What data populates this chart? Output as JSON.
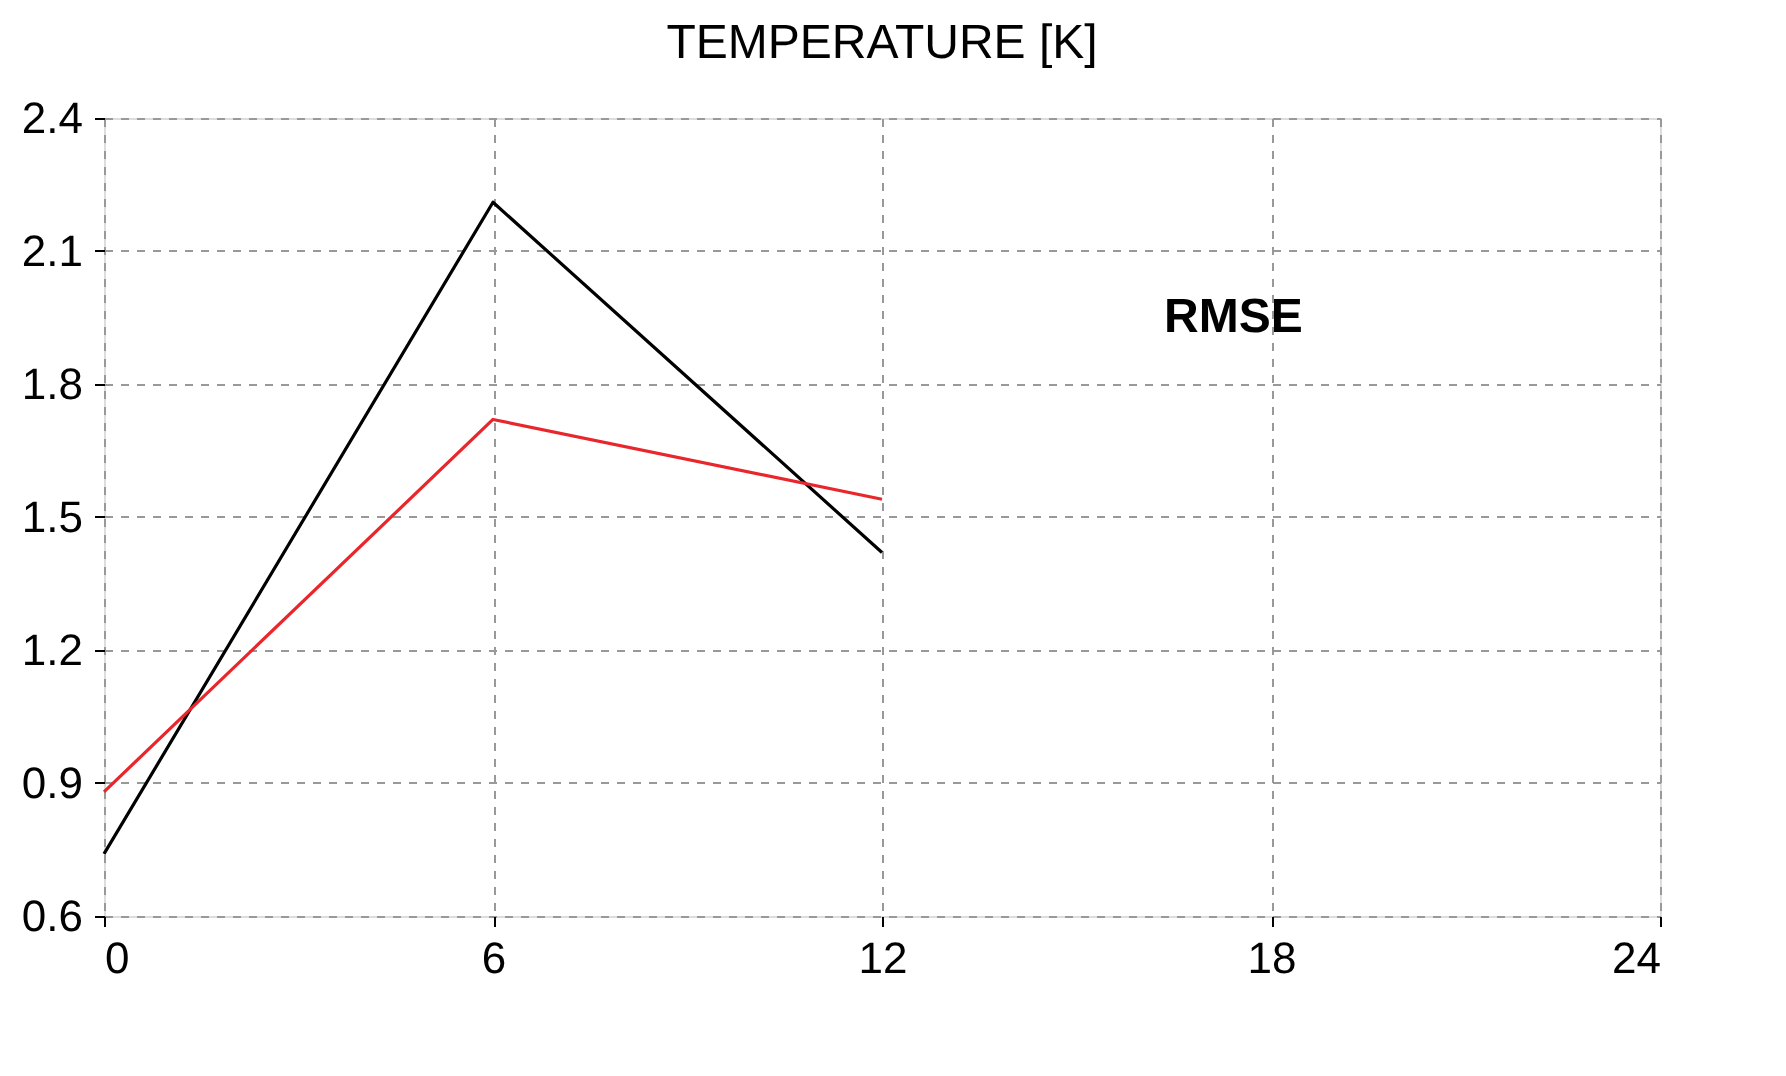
{
  "chart_data": {
    "type": "line",
    "title": "TEMPERATURE [K]",
    "x": [
      0,
      6,
      12
    ],
    "series": [
      {
        "color": "#000000",
        "values": [
          0.74,
          2.21,
          1.42
        ]
      },
      {
        "color": "#e8262b",
        "values": [
          0.88,
          1.72,
          1.54
        ]
      }
    ],
    "xlim": [
      0,
      24
    ],
    "xticks": [
      0,
      6,
      12,
      18,
      24
    ],
    "ylim": [
      0.6,
      2.4
    ],
    "yticks": [
      0.6,
      0.9,
      1.2,
      1.5,
      1.8,
      2.1,
      2.4
    ],
    "grid": true,
    "marker": "none",
    "line_style": "solid",
    "annotations": [
      "RMSE"
    ]
  }
}
